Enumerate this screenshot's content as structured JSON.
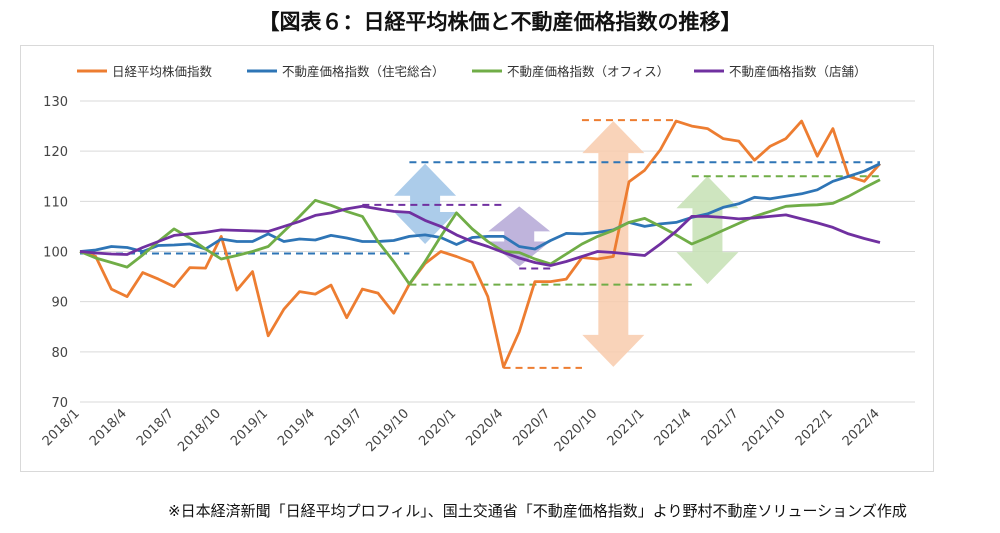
{
  "header": {
    "title": "【図表６：日経平均株価と不動産価格指数の推移】"
  },
  "footer": {
    "source": "※日本経済新聞「日経平均プロフィル」、国土交通省「不動産価格指数」より野村不動産ソリューションズ作成"
  },
  "chart_data": {
    "type": "line",
    "title": "",
    "xlabel": "",
    "ylabel": "",
    "ylim": [
      70,
      130
    ],
    "yticks": [
      70,
      80,
      90,
      100,
      110,
      120,
      130
    ],
    "grid": true,
    "legend_position": "top",
    "x": [
      "2018/1",
      "2018/2",
      "2018/3",
      "2018/4",
      "2018/5",
      "2018/6",
      "2018/7",
      "2018/8",
      "2018/9",
      "2018/10",
      "2018/11",
      "2018/12",
      "2019/1",
      "2019/2",
      "2019/3",
      "2019/4",
      "2019/5",
      "2019/6",
      "2019/7",
      "2019/8",
      "2019/9",
      "2019/10",
      "2019/11",
      "2019/12",
      "2020/1",
      "2020/2",
      "2020/3",
      "2020/4",
      "2020/5",
      "2020/6",
      "2020/7",
      "2020/8",
      "2020/9",
      "2020/10",
      "2020/11",
      "2020/12",
      "2021/1",
      "2021/2",
      "2021/3",
      "2021/4",
      "2021/5",
      "2021/6",
      "2021/7",
      "2021/8",
      "2021/9",
      "2021/10",
      "2021/11",
      "2021/12",
      "2022/1",
      "2022/2",
      "2022/3",
      "2022/4"
    ],
    "xticks": [
      "2018/1",
      "2018/4",
      "2018/7",
      "2018/10",
      "2019/1",
      "2019/4",
      "2019/7",
      "2019/10",
      "2020/1",
      "2020/4",
      "2020/7",
      "2020/10",
      "2021/1",
      "2021/4",
      "2021/7",
      "2021/10",
      "2022/1",
      "2022/4"
    ],
    "series": [
      {
        "name": "日経平均株価指数",
        "color": "#ED7D31",
        "values": [
          100,
          99,
          92.5,
          91,
          95.8,
          94.5,
          93,
          96.8,
          96.7,
          103,
          92.3,
          96,
          83.2,
          88.5,
          92,
          91.5,
          93.3,
          86.8,
          92.5,
          91.7,
          87.7,
          93.5,
          97.6,
          100,
          99,
          97.8,
          91,
          77,
          84,
          94,
          94,
          94.5,
          98.8,
          98.5,
          99,
          113.9,
          116.2,
          120.3,
          126,
          125,
          124.5,
          122.5,
          122,
          118.2,
          121,
          122.5,
          126,
          119,
          124.5,
          115,
          114,
          117.5
        ]
      },
      {
        "name": "不動産価格指数（住宅総合）",
        "color": "#2E75B6",
        "values": [
          100,
          100.3,
          101,
          100.8,
          100,
          101.2,
          101.3,
          101.5,
          100.5,
          102.5,
          102,
          102,
          103.5,
          102,
          102.5,
          102.3,
          103.2,
          102.7,
          102,
          102,
          102.2,
          103,
          103.3,
          102.8,
          101.4,
          102.8,
          103,
          103,
          101,
          100.5,
          102.2,
          103.6,
          103.5,
          103.8,
          104.3,
          105.8,
          105,
          105.5,
          105.8,
          106.8,
          107.5,
          108.8,
          109.5,
          110.8,
          110.5,
          111,
          111.5,
          112.3,
          114,
          115,
          116,
          117.5
        ]
      },
      {
        "name": "不動産価格指数（オフィス）",
        "color": "#70AD47",
        "values": [
          100,
          98.7,
          97.8,
          96.9,
          99.3,
          102,
          104.5,
          102.7,
          100.5,
          98.5,
          99.2,
          100,
          101,
          104,
          107,
          110.2,
          109.2,
          108,
          107,
          102,
          98,
          93.5,
          98,
          103,
          107.7,
          104.5,
          102,
          100,
          99.8,
          98.5,
          97.5,
          99.5,
          101.5,
          103,
          104.2,
          105.8,
          106.6,
          105,
          103.3,
          101.5,
          102.8,
          104.2,
          105.6,
          107,
          108,
          109,
          109.2,
          109.3,
          109.6,
          111,
          112.7,
          114.3
        ]
      },
      {
        "name": "不動産価格指数（店舗）",
        "color": "#7030A0",
        "values": [
          100,
          99.7,
          99.5,
          99.4,
          100.8,
          102,
          103.2,
          103.5,
          103.8,
          104.3,
          104.2,
          104.1,
          104,
          105,
          106,
          107.2,
          107.7,
          108.5,
          109,
          108.5,
          108,
          107.8,
          106.2,
          105,
          103.3,
          102,
          101,
          99.8,
          98.7,
          97.8,
          97.2,
          98,
          99,
          100,
          99.8,
          99.5,
          99.2,
          101.5,
          104,
          107,
          107,
          106.8,
          106.5,
          106.7,
          107,
          107.3,
          106.5,
          105.7,
          104.8,
          103.5,
          102.6,
          101.8
        ]
      }
    ],
    "annotations": {
      "dashed_levels": [
        {
          "color": "#2E75B6",
          "value": 99.6,
          "from": "2018/1",
          "to": "2019/10"
        },
        {
          "color": "#2E75B6",
          "value": 117.8,
          "from": "2019/10",
          "to": "2022/4"
        },
        {
          "color": "#7030A0",
          "value": 109.3,
          "from": "2019/7",
          "to": "2020/4"
        },
        {
          "color": "#7030A0",
          "value": 96.6,
          "from": "2020/5",
          "to": "2020/7"
        },
        {
          "color": "#70AD47",
          "value": 93.4,
          "from": "2019/10",
          "to": "2021/4"
        },
        {
          "color": "#70AD47",
          "value": 115,
          "from": "2021/4",
          "to": "2022/4"
        },
        {
          "color": "#ED7D31",
          "value": 126.2,
          "from": "2020/9",
          "to": "2021/3"
        },
        {
          "color": "#ED7D31",
          "value": 76.8,
          "from": "2020/4",
          "to": "2020/9"
        }
      ],
      "double_arrows": [
        {
          "color": "#9DC3E6",
          "x": "2019/11",
          "from": 101.5,
          "to": 117.5
        },
        {
          "color": "#B4A7D6",
          "x": "2020/5",
          "from": 97,
          "to": 109
        },
        {
          "color": "#F8CBAD",
          "x": "2020/11",
          "from": 77,
          "to": 126
        },
        {
          "color": "#C5E0B4",
          "x": "2021/5",
          "from": 93.5,
          "to": 115
        }
      ]
    }
  }
}
